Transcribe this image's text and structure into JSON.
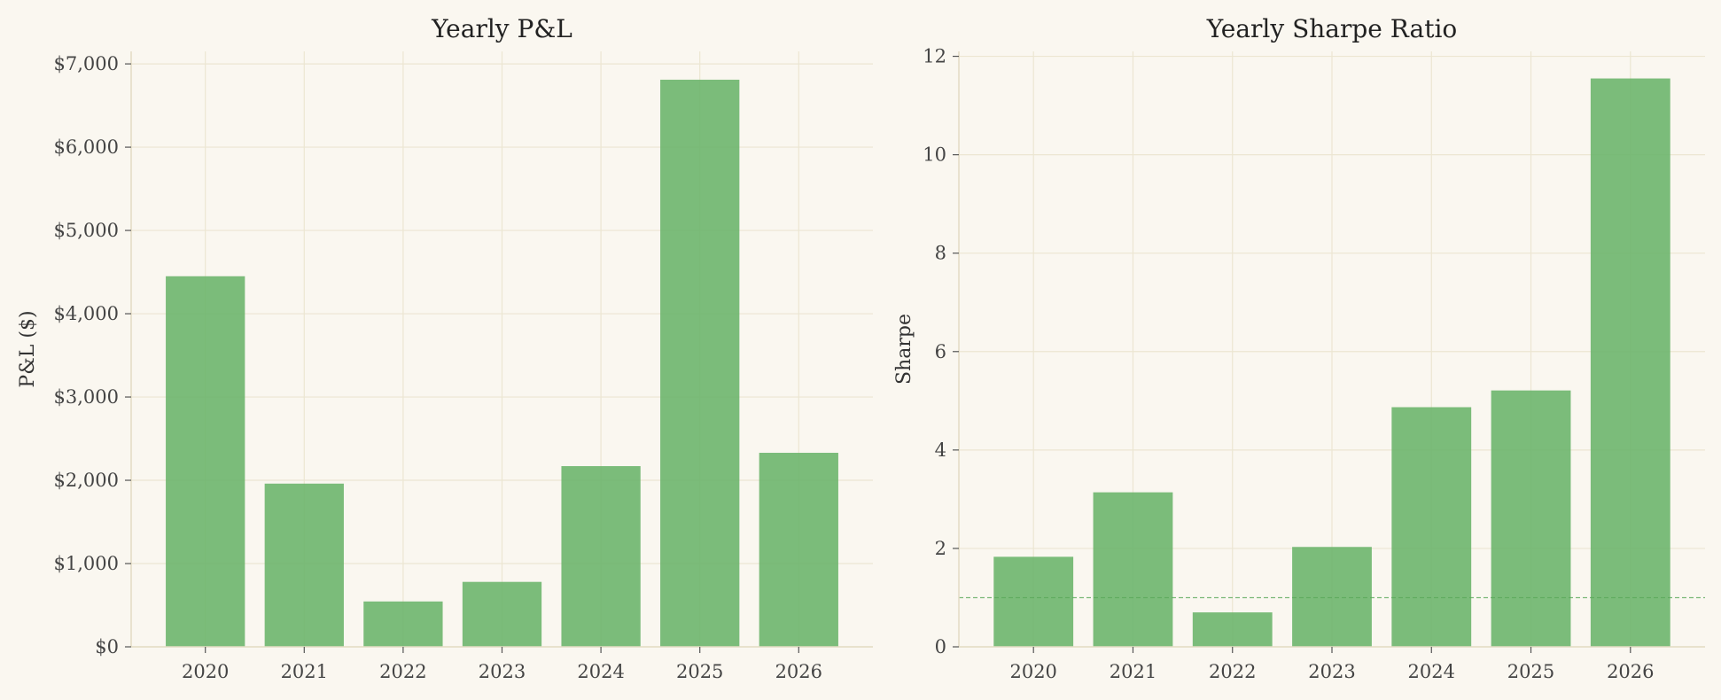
{
  "chart_data": [
    {
      "type": "bar",
      "title": "Yearly P&L",
      "xlabel": "",
      "ylabel": "P&L ($)",
      "categories": [
        "2020",
        "2021",
        "2022",
        "2023",
        "2024",
        "2025",
        "2026"
      ],
      "values": [
        4450,
        1960,
        545,
        780,
        2170,
        6810,
        2330
      ],
      "ylim": [
        0,
        7150
      ],
      "yticks": [
        0,
        1000,
        2000,
        3000,
        4000,
        5000,
        6000,
        7000
      ],
      "ytick_labels": [
        "$0",
        "$1,000",
        "$2,000",
        "$3,000",
        "$4,000",
        "$5,000",
        "$6,000",
        "$7,000"
      ],
      "grid": true,
      "bar_color": "#6db56d"
    },
    {
      "type": "bar",
      "title": "Yearly Sharpe Ratio",
      "xlabel": "",
      "ylabel": "Sharpe",
      "categories": [
        "2020",
        "2021",
        "2022",
        "2023",
        "2024",
        "2025",
        "2026"
      ],
      "values": [
        1.83,
        3.14,
        0.7,
        2.03,
        4.87,
        5.21,
        11.55
      ],
      "ylim": [
        0,
        12.1
      ],
      "yticks": [
        0,
        2,
        4,
        6,
        8,
        10,
        12
      ],
      "ytick_labels": [
        "0",
        "2",
        "4",
        "6",
        "8",
        "10",
        "12"
      ],
      "reference_line": 1,
      "grid": true,
      "bar_color": "#6db56d"
    }
  ]
}
